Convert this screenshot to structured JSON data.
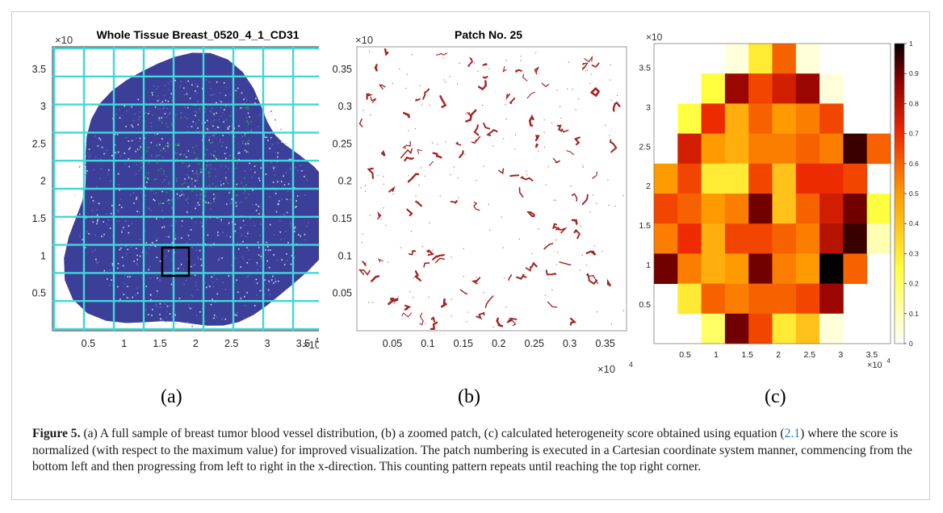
{
  "panel_a": {
    "title": "Whole Tissue Breast_0520_4_1_CD31",
    "y_multiplier": "×10",
    "x_multiplier": "×10",
    "x_exponent": "4",
    "x_ticks": [
      "0.5",
      "1",
      "1.5",
      "2",
      "2.5",
      "3",
      "3.5"
    ],
    "y_ticks": [
      "0.5",
      "1",
      "1.5",
      "2",
      "2.5",
      "3",
      "3.5"
    ],
    "colors": {
      "grid": "#3fd8d8",
      "tissue": "#2b2f8f",
      "vessels": "#2e8b57",
      "highlight_box": "#000000"
    }
  },
  "panel_b": {
    "title": "Patch No. 25",
    "y_multiplier": "×10",
    "x_multiplier": "×10",
    "x_exponent": "4",
    "x_ticks": [
      "0.05",
      "0.1",
      "0.15",
      "0.2",
      "0.25",
      "0.3",
      "0.35"
    ],
    "y_ticks": [
      "0.05",
      "0.1",
      "0.15",
      "0.2",
      "0.25",
      "0.3",
      "0.35"
    ],
    "colors": {
      "vessels": "#a3231f"
    }
  },
  "panel_c": {
    "y_multiplier": "×10",
    "x_multiplier": "×10",
    "x_exponent": "4",
    "x_ticks": [
      "0.5",
      "1",
      "1.5",
      "2",
      "2.5",
      "3",
      "3.5"
    ],
    "y_ticks": [
      "0.5",
      "1",
      "1.5",
      "2",
      "2.5",
      "3",
      "3.5"
    ],
    "colorbar_ticks": [
      "0",
      "0.1",
      "0.2",
      "0.3",
      "0.4",
      "0.5",
      "0.6",
      "0.7",
      "0.8",
      "0.9",
      "1"
    ],
    "colormap": "hot (reversed): white → yellow → orange → red → black"
  },
  "labels": {
    "a": "(a)",
    "b": "(b)",
    "c": "(c)"
  },
  "caption": {
    "figure": "Figure 5.",
    "text_1": " (a) A full sample of breast tumor blood vessel distribution, (b) a zoomed patch, (c) calculated heterogeneity score obtained using equation (",
    "equation_ref": "2.1",
    "text_2": ") where the score is normalized (with respect to the maximum value) for improved visualization. The patch numbering is executed in a Cartesian coordinate system manner, commencing from the bottom left and then progressing from left to right in the x-direction. This counting pattern repeats until reaching the top right corner."
  },
  "chart_data": [
    {
      "type": "heatmap",
      "panel": "c",
      "x_axis_range": [
        0,
        3.8
      ],
      "y_axis_range": [
        0,
        3.8
      ],
      "color_range": [
        0,
        1
      ],
      "rows_top_to_bottom": [
        [
          null,
          null,
          null,
          0.05,
          0.3,
          0.6,
          0.05,
          null,
          null,
          null
        ],
        [
          null,
          null,
          0.25,
          0.85,
          0.65,
          0.75,
          0.85,
          0.05,
          null,
          null
        ],
        [
          null,
          0.25,
          0.7,
          0.45,
          0.6,
          0.5,
          0.55,
          0.65,
          null,
          null
        ],
        [
          null,
          0.75,
          0.5,
          0.45,
          0.55,
          0.55,
          0.6,
          0.55,
          0.95,
          0.6
        ],
        [
          0.5,
          0.65,
          0.3,
          0.3,
          0.65,
          0.4,
          0.7,
          0.7,
          0.65,
          null
        ],
        [
          0.65,
          0.6,
          0.5,
          0.55,
          0.9,
          0.4,
          0.6,
          0.75,
          0.9,
          0.25
        ],
        [
          0.55,
          0.7,
          0.45,
          0.65,
          0.65,
          0.6,
          0.55,
          0.8,
          0.95,
          0.1
        ],
        [
          0.9,
          0.55,
          0.45,
          0.5,
          0.9,
          0.55,
          0.5,
          1.0,
          0.6,
          null
        ],
        [
          null,
          0.3,
          0.6,
          0.55,
          0.6,
          0.6,
          0.65,
          0.85,
          null,
          null
        ],
        [
          null,
          null,
          0.2,
          0.9,
          0.65,
          0.3,
          0.4,
          0.05,
          null,
          null
        ]
      ]
    }
  ]
}
